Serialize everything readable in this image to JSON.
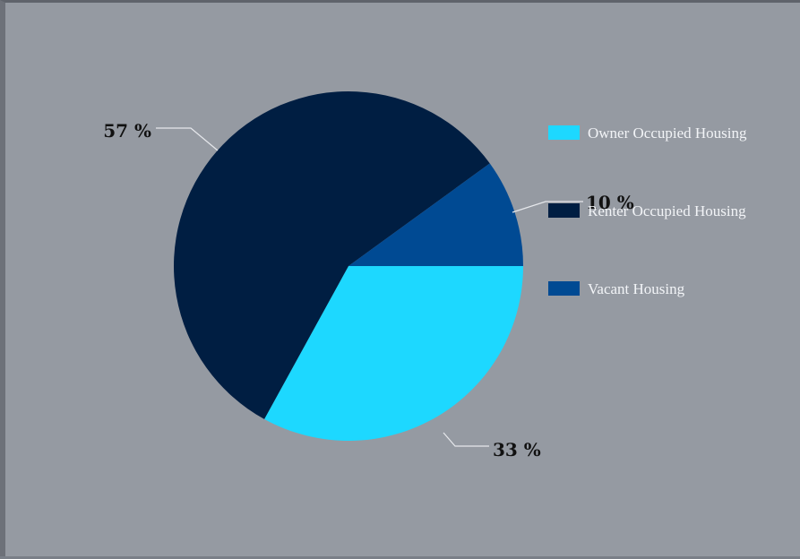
{
  "chart_data": {
    "type": "pie",
    "categories": [
      "Owner Occupied Housing",
      "Renter Occupied Housing",
      "Vacant Housing"
    ],
    "values": [
      33,
      57,
      10
    ],
    "colors": [
      "#1dd8ff",
      "#001e42",
      "#004a93"
    ],
    "value_labels": [
      "33 %",
      "57 %",
      "10 %"
    ],
    "legend": {
      "position": "right",
      "entries": [
        "Owner Occupied Housing",
        "Renter Occupied Housing",
        "Vacant Housing"
      ]
    }
  }
}
